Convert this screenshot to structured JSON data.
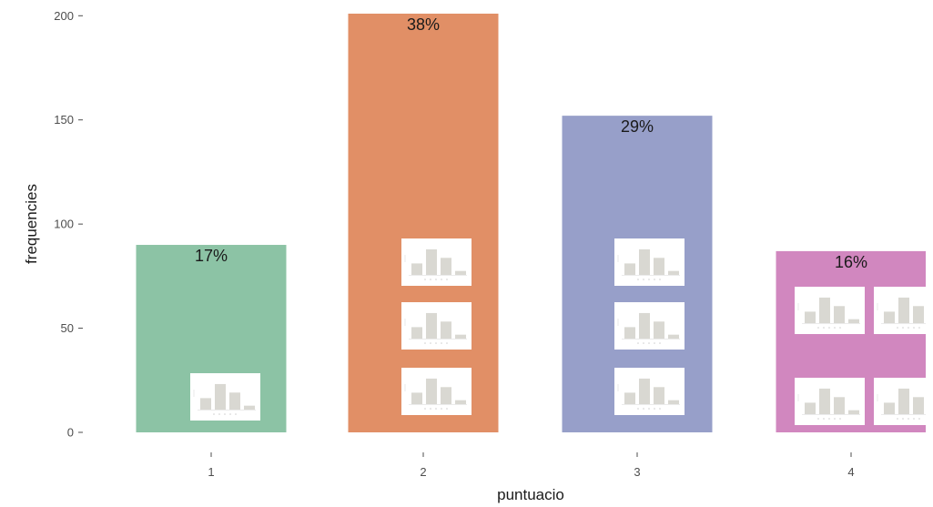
{
  "chart_data": {
    "type": "bar",
    "categories": [
      "1",
      "2",
      "3",
      "4"
    ],
    "values": [
      90,
      201,
      152,
      87
    ],
    "percent_labels": [
      "17%",
      "38%",
      "29%",
      "16%"
    ],
    "colors": [
      "#8cc3a5",
      "#e18f66",
      "#979fc9",
      "#d187bf"
    ],
    "xlabel": "puntuacio",
    "ylabel": "frequencies",
    "yticks": [
      0,
      50,
      100,
      150,
      200
    ],
    "ylim": [
      0,
      201
    ],
    "grid": false,
    "legend": "none",
    "thumbnail_counts": [
      1,
      3,
      3,
      4
    ]
  }
}
